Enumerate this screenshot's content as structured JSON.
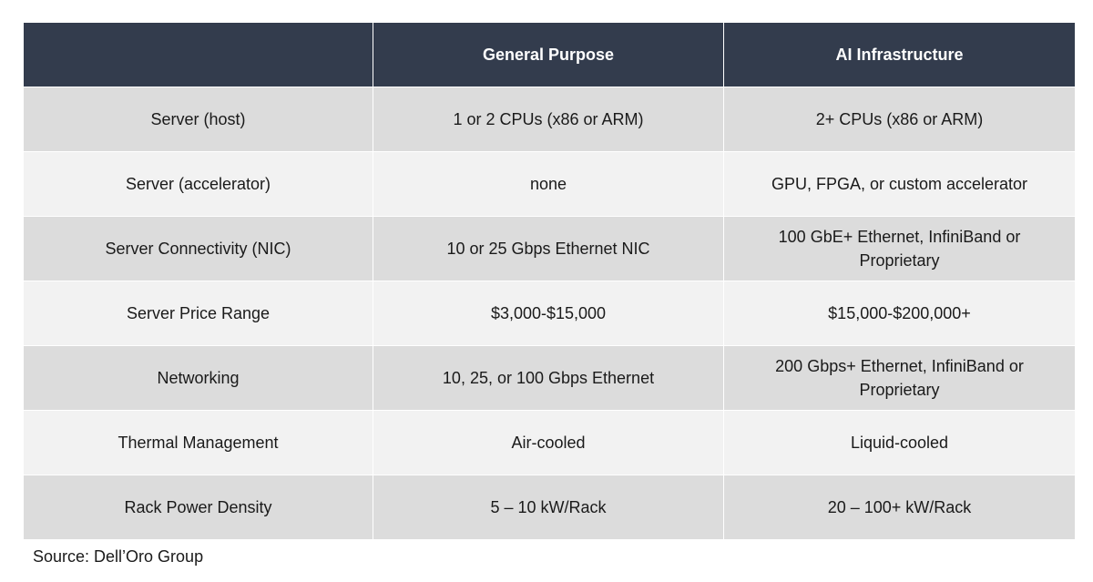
{
  "table": {
    "header": [
      "General Purpose",
      "AI Infrastructure"
    ],
    "rows": [
      [
        "Server (host)",
        "1 or 2 CPUs (x86 or ARM)",
        "2+ CPUs (x86 or ARM)"
      ],
      [
        "Server (accelerator)",
        "none",
        "GPU, FPGA, or custom accelerator"
      ],
      [
        "Server Connectivity (NIC)",
        "10 or 25 Gbps Ethernet NIC",
        "100 GbE+ Ethernet, InfiniBand or Proprietary"
      ],
      [
        "Server Price Range",
        "$3,000-$15,000",
        "$15,000-$200,000+"
      ],
      [
        "Networking",
        "10, 25, or 100 Gbps Ethernet",
        "200 Gbps+ Ethernet, InfiniBand or Proprietary"
      ],
      [
        "Thermal Management",
        "Air-cooled",
        "Liquid-cooled"
      ],
      [
        "Rack Power Density",
        "5 – 10 kW/Rack",
        "20 – 100+ kW/Rack"
      ]
    ]
  },
  "source": "Source: Dell’Oro Group"
}
